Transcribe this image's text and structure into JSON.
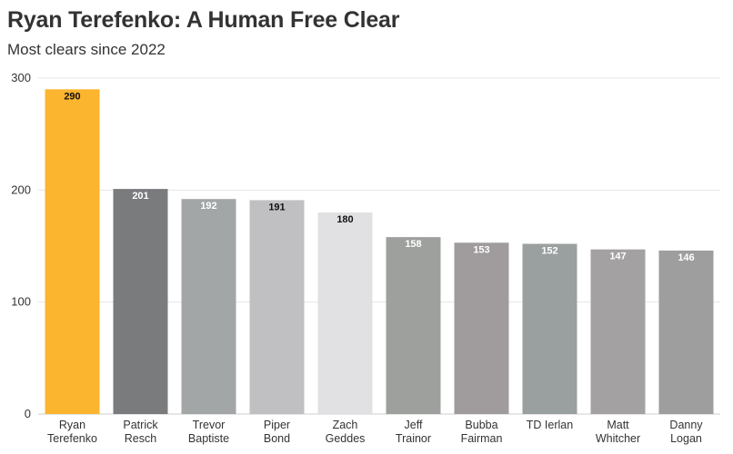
{
  "chart_data": {
    "type": "bar",
    "title": "Ryan Terefenko: A Human Free Clear",
    "subtitle": "Most clears since 2022",
    "xlabel": "",
    "ylabel": "",
    "ylim": [
      0,
      300
    ],
    "yticks": [
      0,
      100,
      200,
      300
    ],
    "grid": true,
    "categories": [
      [
        "Ryan",
        "Terefenko"
      ],
      [
        "Patrick",
        "Resch"
      ],
      [
        "Trevor",
        "Baptiste"
      ],
      [
        "Piper",
        "Bond"
      ],
      [
        "Zach",
        "Geddes"
      ],
      [
        "Jeff",
        "Trainor"
      ],
      [
        "Bubba",
        "Fairman"
      ],
      [
        "TD Ierlan"
      ],
      [
        "Matt",
        "Whitcher"
      ],
      [
        "Danny",
        "Logan"
      ]
    ],
    "values": [
      290,
      201,
      192,
      191,
      180,
      158,
      153,
      152,
      147,
      146
    ],
    "colors": [
      "#fcb52e",
      "#7a7b7d",
      "#a3a6a6",
      "#c0c0c3",
      "#e1e1e3",
      "#9ea09e",
      "#a09c9d",
      "#9aa09f",
      "#a3a1a1",
      "#9e9e9f"
    ],
    "label_colors": [
      "#111111",
      "#ffffff",
      "#ffffff",
      "#111111",
      "#111111",
      "#ffffff",
      "#ffffff",
      "#ffffff",
      "#ffffff",
      "#ffffff"
    ]
  }
}
